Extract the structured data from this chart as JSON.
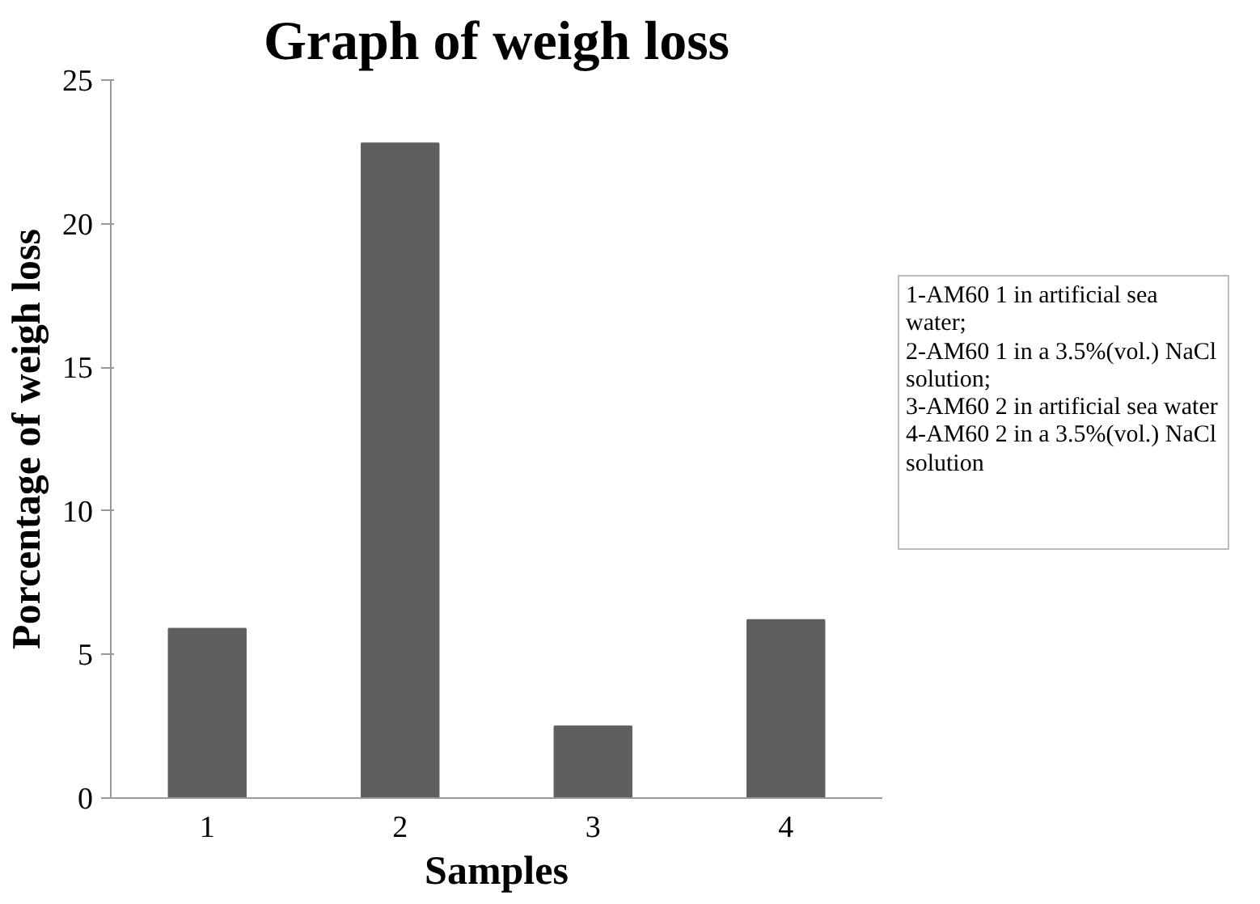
{
  "chart_data": {
    "type": "bar",
    "title": "Graph of weigh loss",
    "xlabel": "Samples",
    "ylabel": "Porcentage of weigh loss",
    "categories": [
      "1",
      "2",
      "3",
      "4"
    ],
    "values": [
      5.9,
      22.8,
      2.5,
      6.2
    ],
    "color": "#5f5f5f",
    "ylim": [
      0,
      25
    ],
    "yticks": [
      0,
      5,
      10,
      15,
      20,
      25
    ],
    "grid": false,
    "annotations": [
      "1-AM60 1 in artificial sea water;",
      "2-AM60 1 in a 3.5%(vol.) NaCl solution;",
      "3-AM60 2 in artificial sea water",
      "4-AM60 2 in a 3.5%(vol.) NaCl solution"
    ]
  }
}
